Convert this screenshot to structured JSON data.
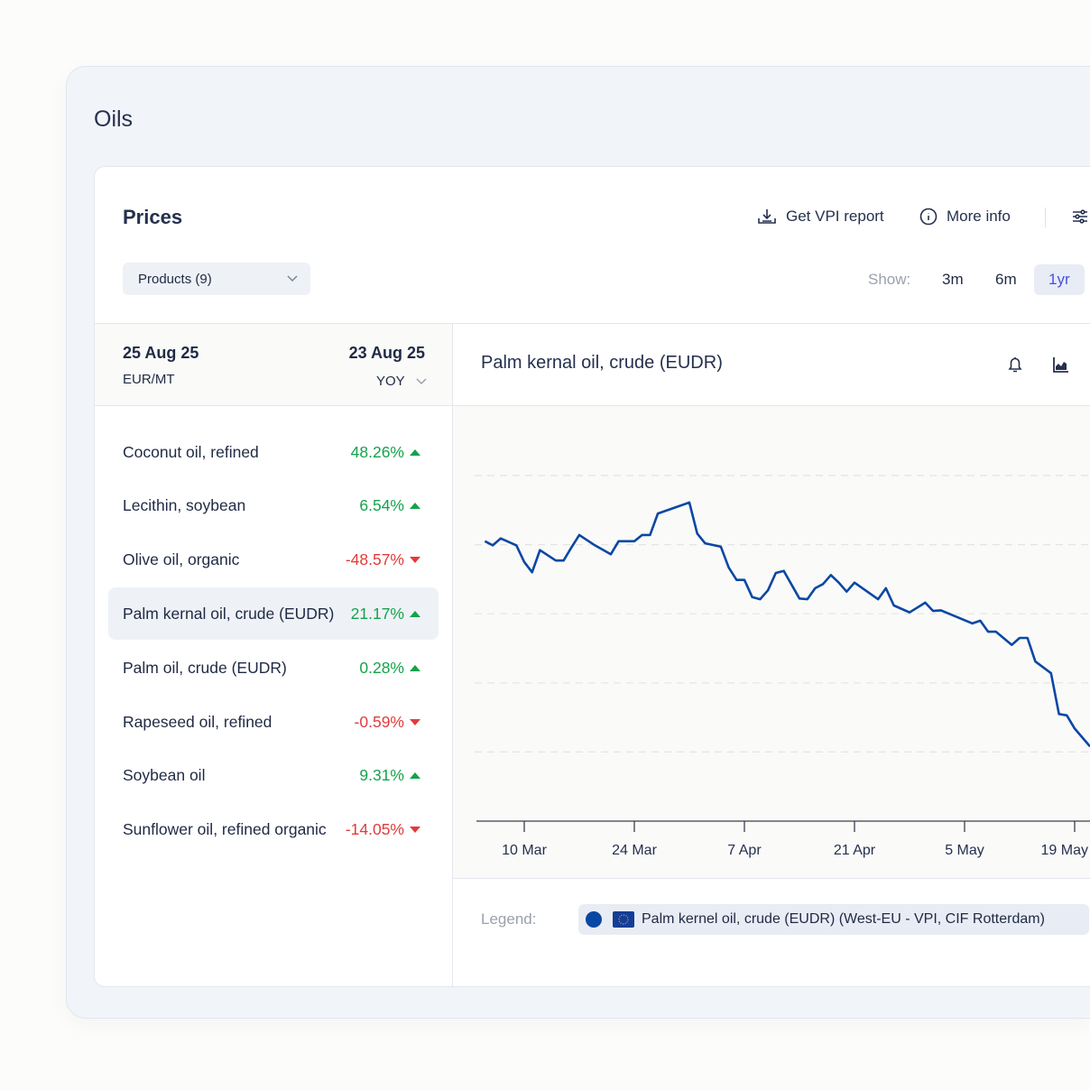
{
  "section_title": "Oils",
  "prices": {
    "title": "Prices",
    "actions": {
      "report": "Get VPI report",
      "info": "More info"
    },
    "products_dropdown": "Products (9)",
    "show_label": "Show:",
    "ranges": [
      "3m",
      "6m",
      "1yr"
    ],
    "active_range": "1yr"
  },
  "table": {
    "date_current": "25 Aug 25",
    "unit": "EUR/MT",
    "date_compare": "23 Aug 25",
    "compare_mode": "YOY",
    "rows": [
      {
        "name": "Coconut oil, refined",
        "change": "48.26%",
        "dir": "up"
      },
      {
        "name": "Lecithin, soybean",
        "change": "6.54%",
        "dir": "up"
      },
      {
        "name": "Olive oil, organic",
        "change": "-48.57%",
        "dir": "down"
      },
      {
        "name": "Palm kernal oil, crude (EUDR)",
        "change": "21.17%",
        "dir": "up",
        "selected": true
      },
      {
        "name": "Palm oil, crude (EUDR)",
        "change": "0.28%",
        "dir": "up"
      },
      {
        "name": "Rapeseed oil, refined",
        "change": "-0.59%",
        "dir": "down"
      },
      {
        "name": "Soybean oil",
        "change": "9.31%",
        "dir": "up"
      },
      {
        "name": "Sunflower oil, refined organic",
        "change": "-14.05%",
        "dir": "down"
      }
    ]
  },
  "colors": {
    "line": "#0a47a3",
    "up": "#13a34a",
    "down": "#e23b3b",
    "accent": "#4a4ee0"
  },
  "chart_data": {
    "type": "line",
    "title": "Palm kernal oil, crude (EUDR)",
    "x_ticks": [
      "10 Mar",
      "24 Mar",
      "7 Apr",
      "21 Apr",
      "5 May",
      "19 May"
    ],
    "grid": true,
    "y_axis_labels": "none shown",
    "legend_label": "Legend:",
    "legend_placement": "bottom",
    "series": [
      {
        "name": "Palm kernel oil, crude (EUDR) (West-EU - VPI, CIF Rotterdam)",
        "color": "#0a47a3",
        "x": [
          "5 Mar",
          "6 Mar",
          "7 Mar",
          "9 Mar",
          "10 Mar",
          "11 Mar",
          "12 Mar",
          "14 Mar",
          "15 Mar",
          "16 Mar",
          "17 Mar",
          "19 Mar",
          "21 Mar",
          "22 Mar",
          "24 Mar",
          "25 Mar",
          "26 Mar",
          "27 Mar",
          "31 Mar",
          "1 Apr",
          "2 Apr",
          "4 Apr",
          "5 Apr",
          "6 Apr",
          "7 Apr",
          "8 Apr",
          "9 Apr",
          "10 Apr",
          "11 Apr",
          "12 Apr",
          "14 Apr",
          "15 Apr",
          "16 Apr",
          "17 Apr",
          "18 Apr",
          "19 Apr",
          "20 Apr",
          "21 Apr",
          "24 Apr",
          "25 Apr",
          "26 Apr",
          "28 Apr",
          "30 Apr",
          "1 May",
          "2 May",
          "6 May",
          "7 May",
          "8 May",
          "9 May",
          "11 May",
          "12 May",
          "13 May",
          "14 May",
          "16 May",
          "17 May",
          "18 May",
          "19 May",
          "21 May"
        ],
        "values": [
          4.05,
          3.99,
          4.09,
          3.99,
          3.75,
          3.6,
          3.92,
          3.77,
          3.77,
          3.96,
          4.14,
          3.99,
          3.86,
          4.05,
          4.05,
          4.14,
          4.14,
          4.45,
          4.61,
          4.16,
          4.02,
          3.97,
          3.67,
          3.49,
          3.49,
          3.24,
          3.21,
          3.34,
          3.59,
          3.62,
          3.22,
          3.21,
          3.37,
          3.43,
          3.56,
          3.45,
          3.32,
          3.45,
          3.21,
          3.37,
          3.12,
          3.02,
          3.16,
          3.04,
          3.05,
          2.86,
          2.9,
          2.74,
          2.74,
          2.55,
          2.65,
          2.65,
          2.31,
          2.14,
          1.55,
          1.53,
          1.34,
          1.08
        ]
      }
    ],
    "ylim": [
      0,
      5
    ]
  }
}
